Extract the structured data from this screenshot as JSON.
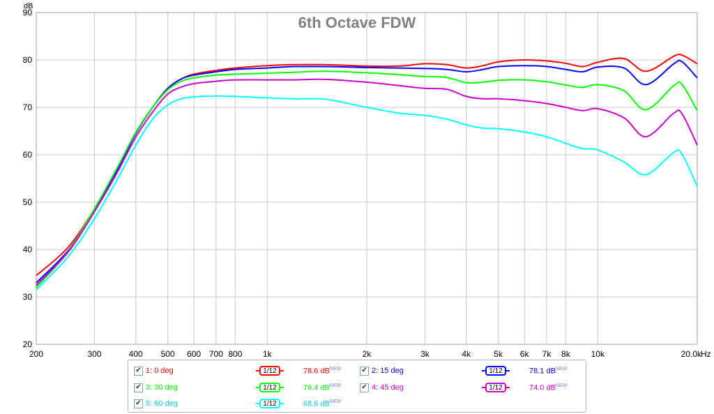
{
  "chart_data": {
    "type": "line",
    "title": "6th Octave FDW",
    "ylabel": "dB",
    "xunit": "Hz",
    "xscale": "log",
    "xlim": [
      200,
      20000
    ],
    "ylim": [
      20,
      90
    ],
    "yticks": [
      "20",
      "30",
      "40",
      "50",
      "60",
      "70",
      "80",
      "90"
    ],
    "xticks": [
      {
        "v": 200,
        "label": "200"
      },
      {
        "v": 300,
        "label": "300"
      },
      {
        "v": 400,
        "label": "400"
      },
      {
        "v": 500,
        "label": "500"
      },
      {
        "v": 600,
        "label": "600"
      },
      {
        "v": 700,
        "label": "700"
      },
      {
        "v": 800,
        "label": "800"
      },
      {
        "v": 1000,
        "label": "1k"
      },
      {
        "v": 2000,
        "label": "2k"
      },
      {
        "v": 3000,
        "label": "3k"
      },
      {
        "v": 4000,
        "label": "4k"
      },
      {
        "v": 5000,
        "label": "5k"
      },
      {
        "v": 6000,
        "label": "6k"
      },
      {
        "v": 7000,
        "label": "7k"
      },
      {
        "v": 8000,
        "label": "8k"
      },
      {
        "v": 10000,
        "label": "10k"
      },
      {
        "v": 20000,
        "label": "20.0k"
      }
    ],
    "grid": true,
    "series": [
      {
        "name": "1: 0 deg",
        "color": "#ff0000",
        "level": "78.6 dB",
        "x": [
          200,
          250,
          300,
          350,
          400,
          450,
          500,
          550,
          600,
          700,
          800,
          1000,
          1200,
          1500,
          2000,
          2500,
          3000,
          3500,
          4000,
          4500,
          5000,
          6000,
          7000,
          8000,
          9000,
          10000,
          12000,
          14000,
          17000,
          18000,
          20000
        ],
        "y": [
          34.5,
          40.5,
          48.5,
          56.5,
          64.5,
          70,
          74,
          76,
          77,
          77.8,
          78.3,
          78.8,
          79,
          79,
          78.7,
          78.7,
          79.2,
          79,
          78.3,
          78.8,
          79.6,
          80,
          79.8,
          79.3,
          78.6,
          79.5,
          80.3,
          77.6,
          80.8,
          81,
          79.2
        ]
      },
      {
        "name": "2: 15 deg",
        "color": "#0000ff",
        "level": "78.1 dB",
        "x": [
          200,
          250,
          300,
          350,
          400,
          450,
          500,
          550,
          600,
          700,
          800,
          1000,
          1200,
          1500,
          2000,
          2500,
          3000,
          3500,
          4000,
          4500,
          5000,
          6000,
          7000,
          8000,
          9000,
          10000,
          12000,
          14000,
          17000,
          18000,
          20000
        ],
        "y": [
          33,
          39.8,
          48.3,
          56.5,
          64.5,
          70,
          74,
          76,
          76.8,
          77.5,
          78,
          78.3,
          78.6,
          78.6,
          78.4,
          78.3,
          78.2,
          78,
          77.5,
          78,
          78.6,
          78.8,
          78.6,
          78,
          77.5,
          78.5,
          78.3,
          74.8,
          79.2,
          79.6,
          76.2
        ]
      },
      {
        "name": "3: 30 deg",
        "color": "#00ff00",
        "level": "76.4 dB",
        "x": [
          200,
          250,
          300,
          350,
          400,
          450,
          500,
          550,
          600,
          700,
          800,
          1000,
          1200,
          1500,
          2000,
          2500,
          3000,
          3500,
          4000,
          4500,
          5000,
          6000,
          7000,
          8000,
          9000,
          10000,
          12000,
          14000,
          17000,
          18000,
          20000
        ],
        "y": [
          32,
          39.6,
          48.6,
          57,
          64.7,
          70,
          73.7,
          75.5,
          76.2,
          76.8,
          77,
          77.2,
          77.4,
          77.6,
          77.3,
          76.9,
          76.5,
          76.3,
          75.2,
          75.3,
          75.7,
          75.8,
          75.4,
          74.7,
          74.2,
          74.8,
          73.5,
          69.5,
          74.6,
          74.8,
          69.3
        ]
      },
      {
        "name": "4: 45 deg",
        "color": "#cc00cc",
        "level": "74.0 dB",
        "x": [
          200,
          250,
          300,
          350,
          400,
          450,
          500,
          550,
          600,
          700,
          800,
          1000,
          1200,
          1500,
          2000,
          2500,
          3000,
          3500,
          4000,
          4500,
          5000,
          6000,
          7000,
          8000,
          9000,
          10000,
          12000,
          14000,
          17000,
          18000,
          20000
        ],
        "y": [
          32.5,
          39.5,
          48,
          56,
          63.7,
          69,
          72.8,
          74.3,
          75,
          75.5,
          75.8,
          75.8,
          75.8,
          75.9,
          75.3,
          74.6,
          74,
          73.8,
          72.3,
          71.8,
          71.8,
          71.4,
          70.8,
          70,
          69.3,
          69.7,
          67.8,
          63.8,
          68.8,
          68.6,
          62
        ]
      },
      {
        "name": "5: 60 deg",
        "color": "#00ffff",
        "level": "68.6 dB",
        "x": [
          200,
          250,
          300,
          350,
          400,
          450,
          500,
          550,
          600,
          700,
          800,
          1000,
          1200,
          1500,
          2000,
          2500,
          3000,
          3500,
          4000,
          4500,
          5000,
          6000,
          7000,
          8000,
          9000,
          10000,
          12000,
          14000,
          17000,
          18000,
          20000
        ],
        "y": [
          31.5,
          38.5,
          46.5,
          54.5,
          62,
          67.5,
          70.5,
          71.8,
          72.2,
          72.4,
          72.3,
          72,
          71.8,
          71.7,
          70,
          68.8,
          68.3,
          67.5,
          66.3,
          65.6,
          65.5,
          64.8,
          63.8,
          62.4,
          61.3,
          61,
          58.5,
          55.8,
          60.5,
          60.1,
          53.3
        ]
      }
    ]
  },
  "legend": {
    "smoothing_label": "1/12"
  }
}
